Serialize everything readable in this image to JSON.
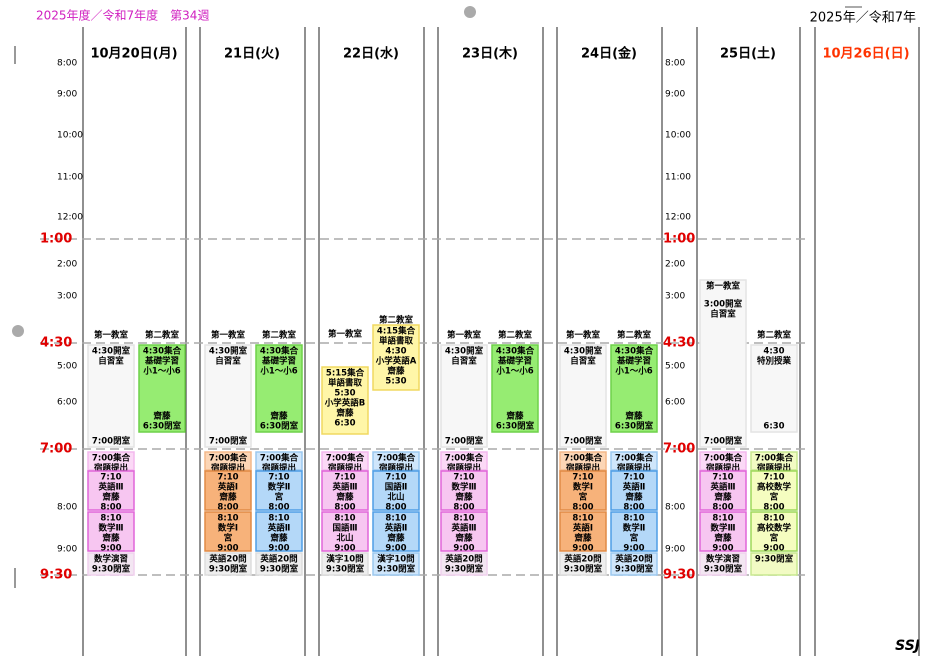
{
  "header": {
    "title": "2025年度／令和7年度　第34週",
    "year": "2025年／令和7年",
    "mark": "SSJ"
  },
  "times": [
    {
      "text": "8:00",
      "color": "#000000"
    },
    {
      "text": "9:00",
      "color": "#000000"
    },
    {
      "text": "10:00",
      "color": "#000000"
    },
    {
      "text": "11:00",
      "color": "#000000"
    },
    {
      "text": "12:00",
      "color": "#000000"
    },
    {
      "text": "1:00",
      "color": "#e00000"
    },
    {
      "text": "2:00",
      "color": "#000000"
    },
    {
      "text": "3:00",
      "color": "#000000"
    },
    {
      "text": "4:30",
      "color": "#e00000"
    },
    {
      "text": "5:00",
      "color": "#000000"
    },
    {
      "text": "6:00",
      "color": "#000000"
    },
    {
      "text": "7:00",
      "color": "#e00000"
    },
    {
      "text": "8:00",
      "color": "#000000"
    },
    {
      "text": "9:00",
      "color": "#000000"
    },
    {
      "text": "9:30",
      "color": "#e00000"
    }
  ],
  "days": [
    {
      "date": "10月20日(月)",
      "color": "#000000",
      "rooms": [
        "第一教室",
        "第二教室"
      ],
      "blocks": [
        {
          "fill": "#f7f7f7",
          "stroke": "#e4e4e4",
          "lines": [
            "4:30開室",
            "自習室"
          ],
          "foot": [
            "7:00閉室"
          ]
        },
        {
          "fill": "#96ec72",
          "stroke": "#6fd14a",
          "lines": [
            "4:30集合",
            "基礎学習",
            "小1～小6"
          ],
          "foot": [
            "齋藤",
            "6:30閉室"
          ]
        },
        {
          "fill": "#fbd9f6",
          "stroke": "#f4b8ee",
          "lines": [
            "7:00集合",
            "宿題提出"
          ]
        },
        {
          "fill": "#f7c6f1",
          "stroke": "#e065d9",
          "lines": [
            "7:10",
            "英語Ⅲ",
            "齋藤",
            "8:00"
          ]
        },
        {
          "fill": "#f7c6f1",
          "stroke": "#e065d9",
          "lines": [
            "8:10",
            "数学Ⅲ",
            "齋藤",
            "9:00"
          ]
        },
        {
          "fill": "#f3e6f2",
          "stroke": "#f0d0ee",
          "lines": [
            "数学演習",
            "9:30閉室"
          ]
        }
      ]
    },
    {
      "date": "21日(火)",
      "color": "#000000",
      "rooms": [
        "第一教室",
        "第二教室"
      ],
      "blocks": [
        {
          "fill": "#f7f7f7",
          "stroke": "#e4e4e4",
          "lines": [
            "4:30開室",
            "自習室"
          ],
          "foot": [
            "7:00閉室"
          ]
        },
        {
          "fill": "#96ec72",
          "stroke": "#6fd14a",
          "lines": [
            "4:30集合",
            "基礎学習",
            "小1～小6"
          ],
          "foot": [
            "齋藤",
            "6:30閉室"
          ]
        },
        {
          "fill": "#fcd6b6",
          "stroke": "#f4b88a",
          "lines": [
            "7:00集合",
            "宿題提出"
          ]
        },
        {
          "fill": "#f7b27a",
          "stroke": "#e08a45",
          "lines": [
            "7:10",
            "英語Ⅰ",
            "齋藤",
            "8:00"
          ]
        },
        {
          "fill": "#f7b27a",
          "stroke": "#e08a45",
          "lines": [
            "8:10",
            "数学Ⅰ",
            "宮",
            "9:00"
          ]
        },
        {
          "fill": "#eeeeee",
          "stroke": "#dddddd",
          "lines": [
            "英語20問",
            "9:30閉室"
          ]
        },
        {
          "fill": "#cfe6fb",
          "stroke": "#9cc8ef",
          "lines": [
            "7:00集合",
            "宿題提出"
          ]
        },
        {
          "fill": "#b4d8f8",
          "stroke": "#4f9ee6",
          "lines": [
            "7:10",
            "数学Ⅱ",
            "宮",
            "8:00"
          ]
        },
        {
          "fill": "#b4d8f8",
          "stroke": "#4f9ee6",
          "lines": [
            "8:10",
            "英語Ⅱ",
            "齋藤",
            "9:00"
          ]
        },
        {
          "fill": "#eeeeee",
          "stroke": "#dddddd",
          "lines": [
            "英語20問",
            "9:30閉室"
          ]
        }
      ]
    },
    {
      "date": "22日(水)",
      "color": "#000000",
      "rooms": [
        "第一教室",
        "第二教室"
      ],
      "blocks": [
        {
          "fill": "#fff6a8",
          "stroke": "#f0d860",
          "lines": [
            "5:15集合",
            "単語書取",
            "5:30",
            "小学英語B",
            "齋藤",
            "6:30"
          ]
        },
        {
          "fill": "#fff6a8",
          "stroke": "#f0d860",
          "lines": [
            "4:15集合",
            "単語書取",
            "4:30",
            "小学英語A",
            "齋藤",
            "5:30"
          ]
        },
        {
          "fill": "#fbd9f6",
          "stroke": "#f4b8ee",
          "lines": [
            "7:00集合",
            "宿題提出"
          ]
        },
        {
          "fill": "#f7c6f1",
          "stroke": "#e065d9",
          "lines": [
            "7:10",
            "英語Ⅲ",
            "齋藤",
            "8:00"
          ]
        },
        {
          "fill": "#f7c6f1",
          "stroke": "#e065d9",
          "lines": [
            "8:10",
            "国語Ⅲ",
            "北山",
            "9:00"
          ]
        },
        {
          "fill": "#eeeeee",
          "stroke": "#dddddd",
          "lines": [
            "漢字10問",
            "9:30閉室"
          ]
        },
        {
          "fill": "#cfe6fb",
          "stroke": "#9cc8ef",
          "lines": [
            "7:00集合",
            "宿題提出"
          ]
        },
        {
          "fill": "#b4d8f8",
          "stroke": "#4f9ee6",
          "lines": [
            "7:10",
            "国語Ⅱ",
            "北山",
            "8:00"
          ]
        },
        {
          "fill": "#b4d8f8",
          "stroke": "#4f9ee6",
          "lines": [
            "8:10",
            "英語Ⅱ",
            "齋藤",
            "9:00"
          ]
        },
        {
          "fill": "#cfe6fb",
          "stroke": "#9cc8ef",
          "lines": [
            "漢字10問",
            "9:30閉室"
          ]
        }
      ]
    },
    {
      "date": "23日(木)",
      "color": "#000000",
      "rooms": [
        "第一教室",
        "第二教室"
      ],
      "blocks": [
        {
          "fill": "#f7f7f7",
          "stroke": "#e4e4e4",
          "lines": [
            "4:30開室",
            "自習室"
          ],
          "foot": [
            "7:00閉室"
          ]
        },
        {
          "fill": "#96ec72",
          "stroke": "#6fd14a",
          "lines": [
            "4:30集合",
            "基礎学習",
            "小1～小6"
          ],
          "foot": [
            "齋藤",
            "6:30閉室"
          ]
        },
        {
          "fill": "#fbd9f6",
          "stroke": "#f4b8ee",
          "lines": [
            "7:00集合",
            "宿題提出"
          ]
        },
        {
          "fill": "#f7c6f1",
          "stroke": "#e065d9",
          "lines": [
            "7:10",
            "数学Ⅲ",
            "齋藤",
            "8:00"
          ]
        },
        {
          "fill": "#f7c6f1",
          "stroke": "#e065d9",
          "lines": [
            "8:10",
            "英語Ⅲ",
            "齋藤",
            "9:00"
          ]
        },
        {
          "fill": "#f3e6f2",
          "stroke": "#f0d0ee",
          "lines": [
            "英語20問",
            "9:30閉室"
          ]
        }
      ]
    },
    {
      "date": "24日(金)",
      "color": "#000000",
      "rooms": [
        "第一教室",
        "第二教室"
      ],
      "blocks": [
        {
          "fill": "#f7f7f7",
          "stroke": "#e4e4e4",
          "lines": [
            "4:30開室",
            "自習室"
          ],
          "foot": [
            "7:00閉室"
          ]
        },
        {
          "fill": "#96ec72",
          "stroke": "#6fd14a",
          "lines": [
            "4:30集合",
            "基礎学習",
            "小1～小6"
          ],
          "foot": [
            "齋藤",
            "6:30閉室"
          ]
        },
        {
          "fill": "#fcd6b6",
          "stroke": "#f4b88a",
          "lines": [
            "7:00集合",
            "宿題提出"
          ]
        },
        {
          "fill": "#f7b27a",
          "stroke": "#e08a45",
          "lines": [
            "7:10",
            "数学Ⅰ",
            "宮",
            "8:00"
          ]
        },
        {
          "fill": "#f7b27a",
          "stroke": "#e08a45",
          "lines": [
            "8:10",
            "英語Ⅰ",
            "齋藤",
            "9:00"
          ]
        },
        {
          "fill": "#eeeeee",
          "stroke": "#dddddd",
          "lines": [
            "英語20問",
            "9:30閉室"
          ]
        },
        {
          "fill": "#cfe6fb",
          "stroke": "#9cc8ef",
          "lines": [
            "7:00集合",
            "宿題提出"
          ]
        },
        {
          "fill": "#b4d8f8",
          "stroke": "#4f9ee6",
          "lines": [
            "7:10",
            "英語Ⅱ",
            "齋藤",
            "8:00"
          ]
        },
        {
          "fill": "#b4d8f8",
          "stroke": "#4f9ee6",
          "lines": [
            "8:10",
            "数学Ⅱ",
            "宮",
            "9:00"
          ]
        },
        {
          "fill": "#cfe6fb",
          "stroke": "#9cc8ef",
          "lines": [
            "英語20問",
            "9:30閉室"
          ]
        }
      ]
    },
    {
      "date": "25日(土)",
      "color": "#000000",
      "rooms": [
        "第一教室",
        "第二教室"
      ],
      "blocks": [
        {
          "fill": "#f7f7f7",
          "stroke": "#e4e4e4",
          "lines": [
            "3:00開室",
            "自習室"
          ],
          "foot": [
            "7:00閉室"
          ]
        },
        {
          "fill": "#f7f7f7",
          "stroke": "#e4e4e4",
          "lines": [
            "4:30",
            "特別授業"
          ],
          "foot": [
            "6:30"
          ]
        },
        {
          "fill": "#fbd9f6",
          "stroke": "#f4b8ee",
          "lines": [
            "7:00集合",
            "宿題提出"
          ]
        },
        {
          "fill": "#f7c6f1",
          "stroke": "#e065d9",
          "lines": [
            "7:10",
            "英語Ⅲ",
            "齋藤",
            "8:00"
          ]
        },
        {
          "fill": "#f7c6f1",
          "stroke": "#e065d9",
          "lines": [
            "8:10",
            "数学Ⅲ",
            "齋藤",
            "9:00"
          ]
        },
        {
          "fill": "#f3e6f2",
          "stroke": "#f0d0ee",
          "lines": [
            "数学演習",
            "9:30閉室"
          ]
        },
        {
          "fill": "#f2fbc4",
          "stroke": "#c8e890",
          "lines": [
            "7:00集合",
            "宿題提出"
          ]
        },
        {
          "fill": "#f5fdc0",
          "stroke": "#9ed85a",
          "lines": [
            "7:10",
            "高校数学",
            "宮",
            "8:00"
          ]
        },
        {
          "fill": "#f5fdc0",
          "stroke": "#9ed85a",
          "lines": [
            "8:10",
            "高校数学",
            "宮",
            "9:00"
          ]
        },
        {
          "fill": "#f2fbc4",
          "stroke": "#c8e890",
          "lines": [
            "9:30閉室"
          ]
        }
      ]
    },
    {
      "date": "10月26日(日)",
      "color": "#ff3300",
      "rooms": [],
      "blocks": []
    }
  ]
}
